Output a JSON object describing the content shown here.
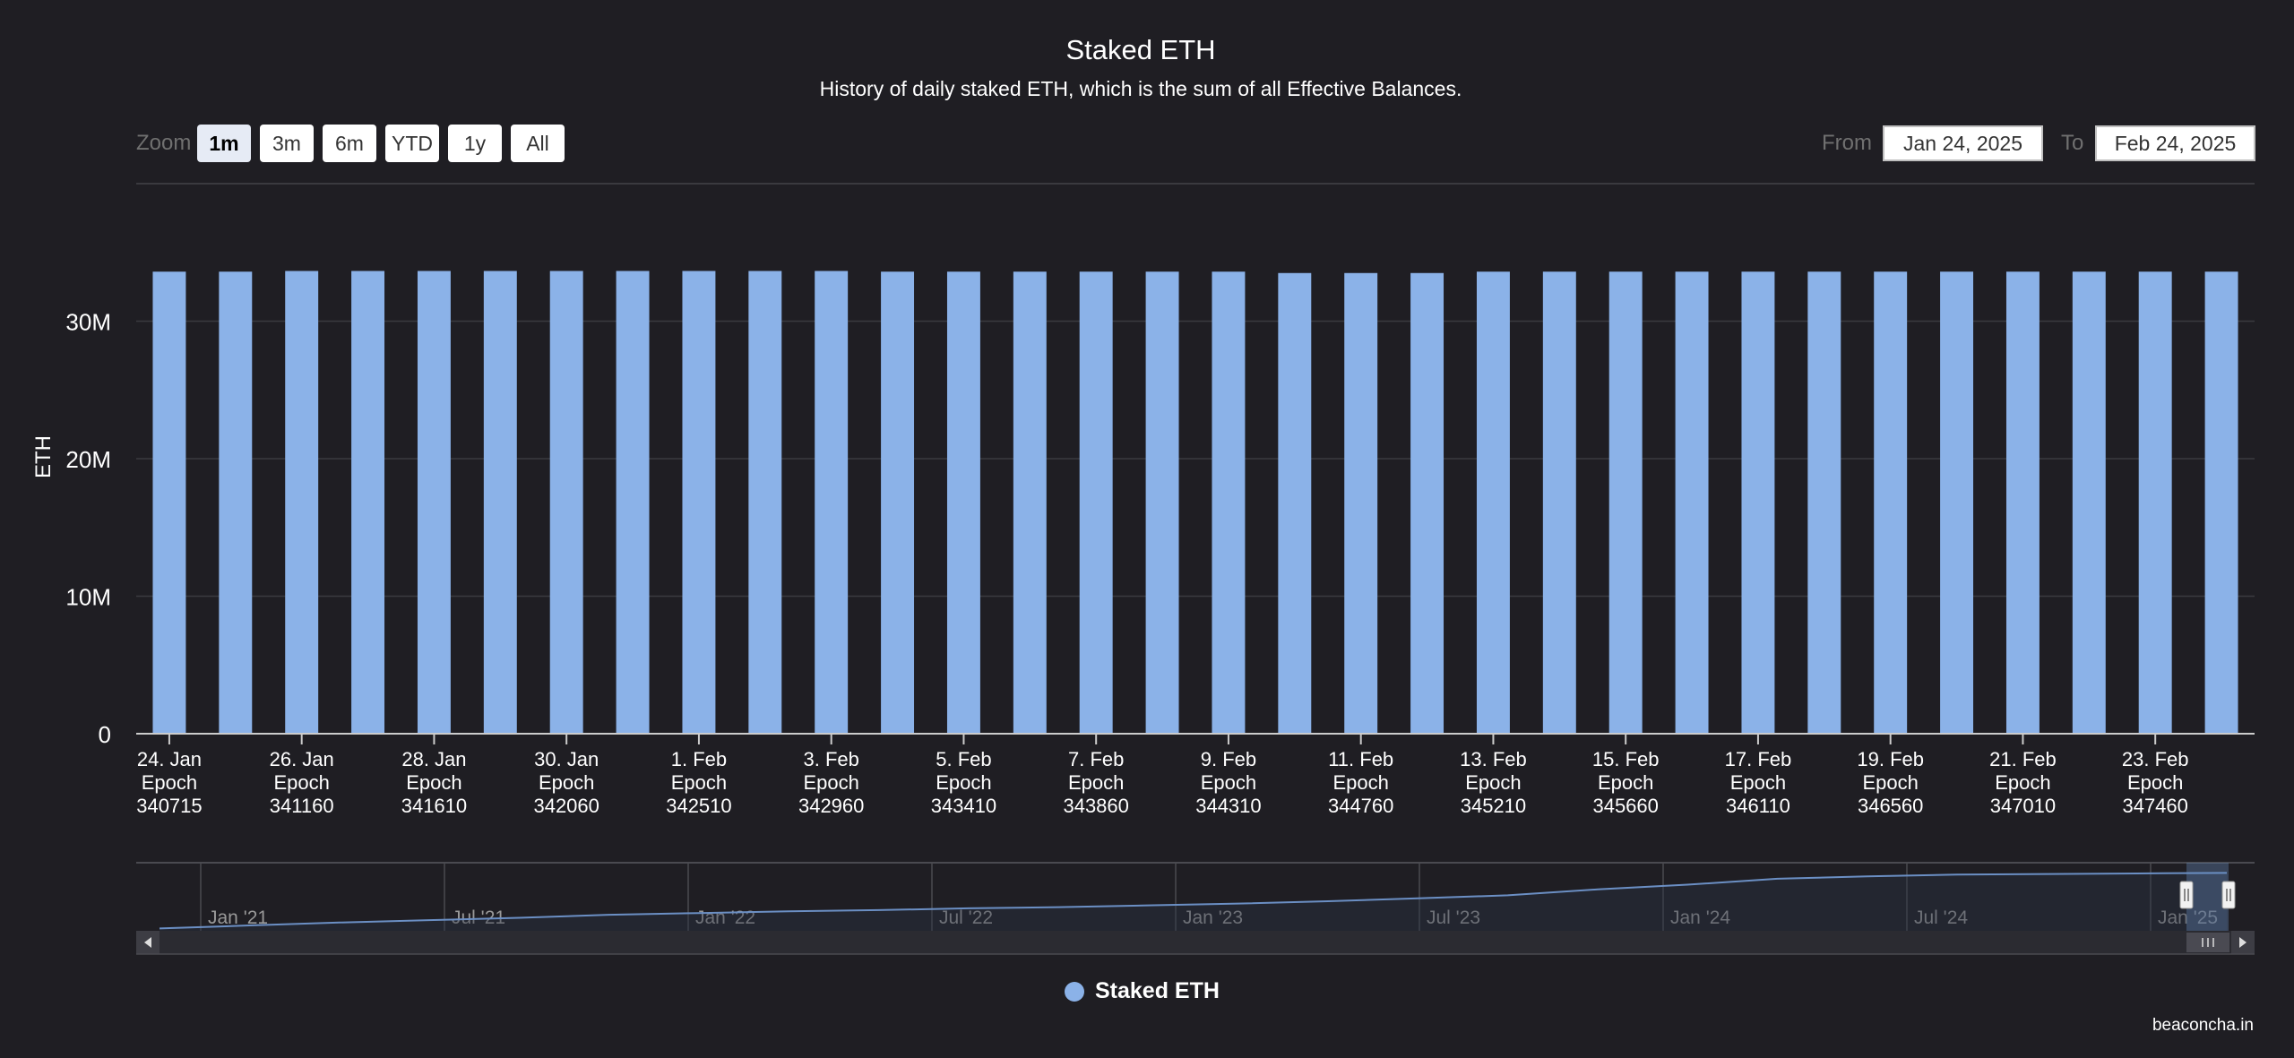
{
  "header": {
    "title": "Staked ETH",
    "subtitle": "History of daily staked ETH, which is the sum of all Effective Balances."
  },
  "zoom": {
    "label": "Zoom",
    "buttons": [
      "1m",
      "3m",
      "6m",
      "YTD",
      "1y",
      "All"
    ],
    "active": "1m"
  },
  "range": {
    "from_label": "From",
    "from_value": "Jan 24, 2025",
    "to_label": "To",
    "to_value": "Feb 24, 2025"
  },
  "legend": {
    "label": "Staked ETH"
  },
  "credit": "beaconcha.in",
  "colors": {
    "background": "#1f1e23",
    "bar": "#8bb2e8",
    "gridline": "#3a3a3f",
    "navigator_line": "#6b8fc4",
    "navigator_fill": "#2a3344"
  },
  "chart_data": {
    "type": "bar",
    "ylabel": "ETH",
    "ylim": [
      0,
      40000000
    ],
    "yticks": [
      0,
      10000000,
      20000000,
      30000000
    ],
    "ytick_labels": [
      "0",
      "10M",
      "20M",
      "30M"
    ],
    "grid": true,
    "legend_position": "bottom-center",
    "series": [
      {
        "name": "Staked ETH",
        "values": [
          33600000,
          33600000,
          33650000,
          33650000,
          33650000,
          33650000,
          33650000,
          33650000,
          33650000,
          33650000,
          33650000,
          33600000,
          33600000,
          33600000,
          33600000,
          33600000,
          33600000,
          33500000,
          33500000,
          33500000,
          33600000,
          33600000,
          33600000,
          33600000,
          33600000,
          33600000,
          33600000,
          33600000,
          33600000,
          33600000,
          33600000,
          33600000
        ]
      }
    ],
    "x_tick_labels": [
      [
        "24. Jan",
        "Epoch",
        "340715"
      ],
      [
        "26. Jan",
        "Epoch",
        "341160"
      ],
      [
        "28. Jan",
        "Epoch",
        "341610"
      ],
      [
        "30. Jan",
        "Epoch",
        "342060"
      ],
      [
        "1. Feb",
        "Epoch",
        "342510"
      ],
      [
        "3. Feb",
        "Epoch",
        "342960"
      ],
      [
        "5. Feb",
        "Epoch",
        "343410"
      ],
      [
        "7. Feb",
        "Epoch",
        "343860"
      ],
      [
        "9. Feb",
        "Epoch",
        "344310"
      ],
      [
        "11. Feb",
        "Epoch",
        "344760"
      ],
      [
        "13. Feb",
        "Epoch",
        "345210"
      ],
      [
        "15. Feb",
        "Epoch",
        "345660"
      ],
      [
        "17. Feb",
        "Epoch",
        "346110"
      ],
      [
        "19. Feb",
        "Epoch",
        "346560"
      ],
      [
        "21. Feb",
        "Epoch",
        "347010"
      ],
      [
        "23. Feb",
        "Epoch",
        "347460"
      ]
    ],
    "navigator": {
      "x_labels": [
        "Jan '21",
        "Jul '21",
        "Jan '22",
        "Jul '22",
        "Jan '23",
        "Jul '23",
        "Jan '24",
        "Jul '24",
        "Jan '25"
      ],
      "values": [
        0.04,
        0.09,
        0.14,
        0.18,
        0.22,
        0.27,
        0.3,
        0.33,
        0.35,
        0.38,
        0.4,
        0.43,
        0.46,
        0.5,
        0.55,
        0.6,
        0.7,
        0.78,
        0.88,
        0.92,
        0.95,
        0.96,
        0.97,
        0.98
      ]
    }
  }
}
